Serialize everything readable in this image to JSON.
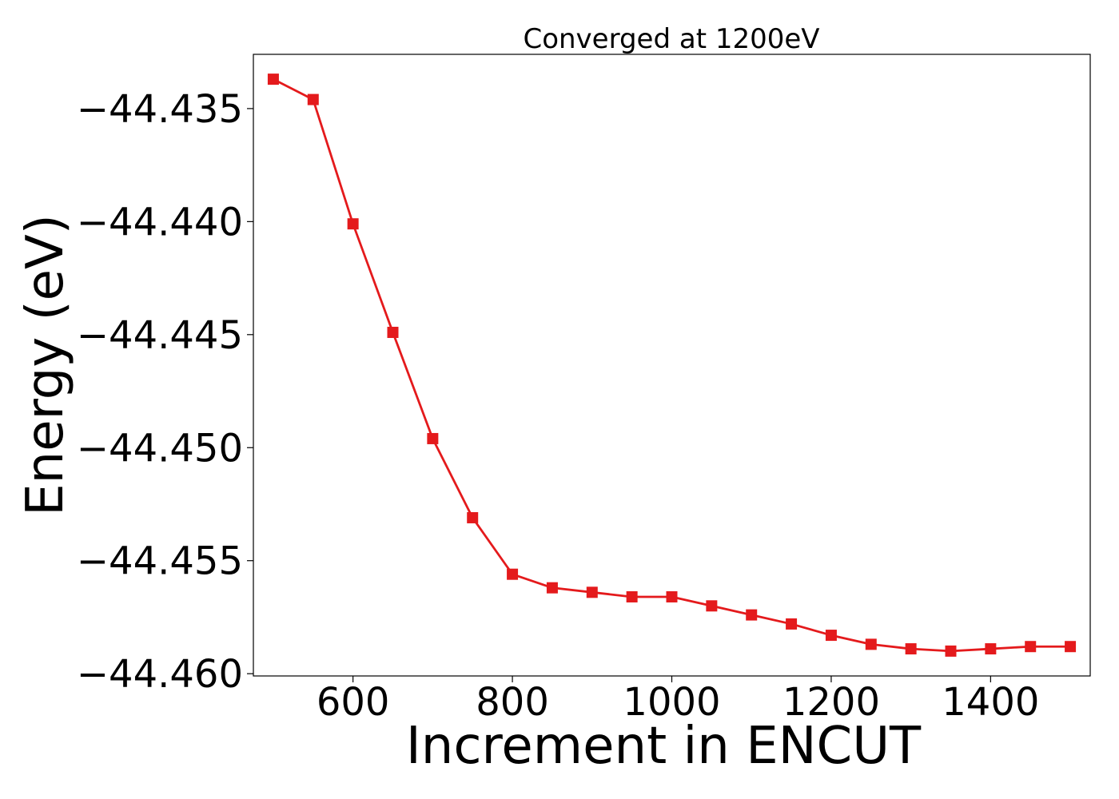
{
  "chart_data": {
    "type": "line",
    "title": "Converged at 1200eV",
    "xlabel": "Increment in ENCUT",
    "ylabel": "Energy (eV)",
    "xlim": [
      475,
      1525
    ],
    "ylim": [
      -44.4601,
      -44.4326
    ],
    "x_ticks": [
      600,
      800,
      1000,
      1200,
      1400
    ],
    "x_tick_labels": [
      "600",
      "800",
      "1000",
      "1200",
      "1400"
    ],
    "y_ticks": [
      -44.435,
      -44.44,
      -44.445,
      -44.45,
      -44.455,
      -44.46
    ],
    "y_tick_labels": [
      "−44.435",
      "−44.440",
      "−44.445",
      "−44.450",
      "−44.455",
      "−44.460"
    ],
    "grid": false,
    "series": [
      {
        "color": "#e41a1c",
        "marker": "square",
        "x": [
          500,
          550,
          600,
          650,
          700,
          750,
          800,
          850,
          900,
          950,
          1000,
          1050,
          1100,
          1150,
          1200,
          1250,
          1300,
          1350,
          1400,
          1450,
          1500
        ],
        "y": [
          -44.4337,
          -44.4346,
          -44.4401,
          -44.4449,
          -44.4496,
          -44.4531,
          -44.4556,
          -44.4562,
          -44.4564,
          -44.4566,
          -44.4566,
          -44.457,
          -44.4574,
          -44.4578,
          -44.4583,
          -44.4587,
          -44.4589,
          -44.459,
          -44.4589,
          -44.4588,
          -44.4588
        ]
      }
    ]
  }
}
